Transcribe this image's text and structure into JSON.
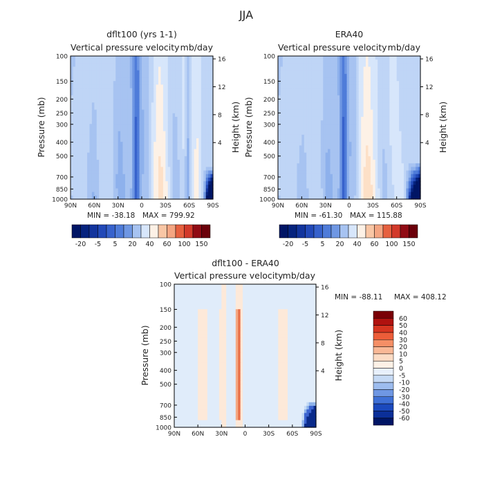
{
  "figure_title": "JJA",
  "colors": {
    "neg": [
      "#f0f4ff",
      "#d7e6fb",
      "#bfd5f6",
      "#a7c3f1",
      "#8eb1ec",
      "#6f97e3",
      "#4f7cd9",
      "#3762cc",
      "#2249b8",
      "#12349d",
      "#06237e",
      "#001565"
    ],
    "pos": [
      "#fdf1e6",
      "#fde0c7",
      "#f9c6a5",
      "#f4a582",
      "#ee865f",
      "#e6603f",
      "#d2392a",
      "#b51c1e",
      "#900b14",
      "#6b000a"
    ]
  },
  "chart_data": [
    {
      "id": "dflt100",
      "type": "heatmap",
      "subtitle": "dflt100 (yrs 1-1)",
      "title": "Vertical pressure velocity",
      "units": "mb/day",
      "xlabel": "",
      "ylabel": "Pressure (mb)",
      "y2label": "Height (km)",
      "x_ticks": [
        "90N",
        "60N",
        "30N",
        "0",
        "30S",
        "60S",
        "90S"
      ],
      "y_ticks": [
        "100",
        "150",
        "200",
        "250",
        "300",
        "400",
        "500",
        "700",
        "850",
        "1000"
      ],
      "y2_ticks": [
        "16",
        "12",
        "8",
        "4"
      ],
      "min_label": "MIN = -38.18",
      "max_label": "MAX = 799.92",
      "colorbar": [
        "-20",
        "-5",
        "5",
        "20",
        "40",
        "60",
        "100",
        "150"
      ],
      "features": [
        {
          "lat": 60,
          "w": 9,
          "i": 0.45
        },
        {
          "lat": 28,
          "w": 7,
          "i": 0.35
        },
        {
          "lat": 7,
          "w": 4.5,
          "i": 1.0
        },
        {
          "lat": -22,
          "w": 11,
          "i": -0.85
        },
        {
          "lat": -43,
          "w": 7,
          "i": 0.3
        },
        {
          "lat": -58,
          "w": 3,
          "i": 0.7
        },
        {
          "lat": -70,
          "w": 5,
          "i": -0.4
        }
      ],
      "corner": {
        "lat_start": -78,
        "p_start": 600,
        "i": 4.0
      }
    },
    {
      "id": "era40",
      "type": "heatmap",
      "subtitle": "ERA40",
      "title": "Vertical pressure velocity",
      "units": "mb/day",
      "xlabel": "",
      "ylabel": "Pressure (mb)",
      "y2label": "Height (km)",
      "x_ticks": [
        "90N",
        "60N",
        "30N",
        "0",
        "30S",
        "60S",
        "90S"
      ],
      "y_ticks": [
        "100",
        "150",
        "200",
        "250",
        "300",
        "400",
        "500",
        "700",
        "850",
        "1000"
      ],
      "y2_ticks": [
        "16",
        "12",
        "8",
        "4"
      ],
      "min_label": "MIN = -61.30",
      "max_label": "MAX = 115.88",
      "colorbar": [
        "-20",
        "-5",
        "5",
        "20",
        "40",
        "60",
        "100",
        "150"
      ],
      "features": [
        {
          "lat": 58,
          "w": 9,
          "i": 0.4
        },
        {
          "lat": 27,
          "w": 7,
          "i": 0.3
        },
        {
          "lat": 7,
          "w": 4.5,
          "i": 1.0
        },
        {
          "lat": -22,
          "w": 12,
          "i": -0.9
        },
        {
          "lat": -45,
          "w": 7,
          "i": 0.25
        }
      ],
      "corner": {
        "lat_start": -70,
        "p_start": 550,
        "i": 3.5
      }
    },
    {
      "id": "diff",
      "type": "heatmap",
      "subtitle": "dflt100 - ERA40",
      "title": "Vertical pressure velocity",
      "units": "mb/day",
      "xlabel": "",
      "ylabel": "Pressure (mb)",
      "y2label": "Height (km)",
      "x_ticks": [
        "90N",
        "60N",
        "30N",
        "0",
        "30S",
        "60S",
        "90S"
      ],
      "y_ticks": [
        "100",
        "150",
        "200",
        "250",
        "300",
        "400",
        "500",
        "700",
        "850",
        "1000"
      ],
      "y2_ticks": [
        "16",
        "12",
        "8",
        "4"
      ],
      "min_label": "MIN = -88.11",
      "max_label": "MAX = 408.12",
      "colorbar": [
        "60",
        "50",
        "40",
        "30",
        "20",
        "10",
        "5",
        "0",
        "-5",
        "-10",
        "-20",
        "-30",
        "-40",
        "-50",
        "-60"
      ],
      "features": [
        {
          "lat": 8,
          "w": 3,
          "i": 1.0
        },
        {
          "lat": 55,
          "w": 4,
          "i": 0.3
        },
        {
          "lat": 28,
          "w": 4,
          "i": 0.3
        },
        {
          "lat": -48,
          "w": 5,
          "i": 0.3
        },
        {
          "lat": -15,
          "w": 6,
          "i": -0.3
        },
        {
          "lat": -65,
          "w": 5,
          "i": -0.3
        }
      ],
      "corner": {
        "lat_start": -72,
        "p_start": 650,
        "i": -4.0
      }
    }
  ]
}
